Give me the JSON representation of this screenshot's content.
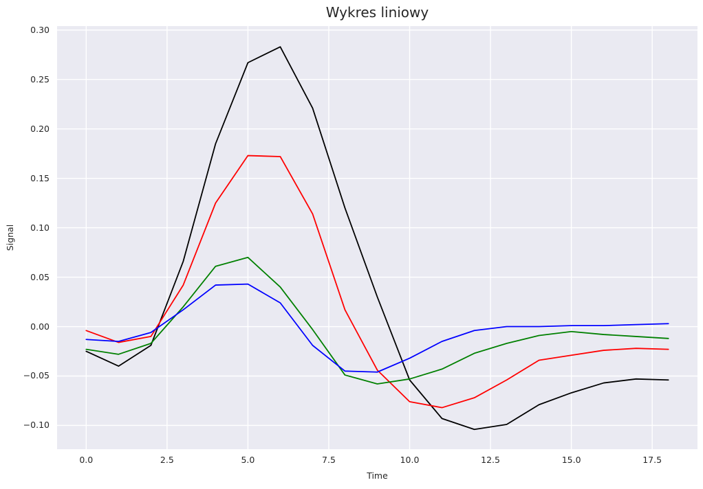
{
  "figure": {
    "background": "#ffffff"
  },
  "chart_data": {
    "type": "line",
    "title": "Wykres liniowy",
    "xlabel": "Time",
    "ylabel": "Signal",
    "grid": true,
    "legend": false,
    "plot_bg": "#eaeaf2",
    "grid_color": "#ffffff",
    "tick_color": "#262626",
    "xlim": [
      -0.9,
      18.9
    ],
    "ylim": [
      -0.124,
      0.304
    ],
    "xticks": [
      0,
      2.5,
      5,
      7.5,
      10,
      12.5,
      15,
      17.5
    ],
    "yticks": [
      -0.1,
      -0.05,
      0,
      0.05,
      0.1,
      0.15,
      0.2,
      0.25,
      0.3
    ],
    "x": [
      0,
      1,
      2,
      3,
      4,
      5,
      6,
      7,
      8,
      9,
      10,
      11,
      12,
      13,
      14,
      15,
      16,
      17,
      18
    ],
    "series": [
      {
        "name": "black",
        "color": "#000000",
        "values": [
          -0.025,
          -0.04,
          -0.019,
          0.066,
          0.185,
          0.267,
          0.283,
          0.221,
          0.12,
          0.03,
          -0.054,
          -0.093,
          -0.104,
          -0.099,
          -0.079,
          -0.067,
          -0.057,
          -0.053,
          -0.054
        ]
      },
      {
        "name": "red",
        "color": "#ff0000",
        "values": [
          -0.004,
          -0.016,
          -0.01,
          0.042,
          0.125,
          0.173,
          0.172,
          0.114,
          0.017,
          -0.044,
          -0.076,
          -0.082,
          -0.072,
          -0.054,
          -0.034,
          -0.029,
          -0.024,
          -0.022,
          -0.023
        ]
      },
      {
        "name": "green",
        "color": "#008000",
        "values": [
          -0.023,
          -0.028,
          -0.017,
          0.02,
          0.061,
          0.07,
          0.04,
          -0.003,
          -0.049,
          -0.058,
          -0.053,
          -0.043,
          -0.027,
          -0.017,
          -0.009,
          -0.005,
          -0.008,
          -0.01,
          -0.012
        ]
      },
      {
        "name": "blue",
        "color": "#0000ff",
        "values": [
          -0.013,
          -0.015,
          -0.006,
          0.017,
          0.042,
          0.043,
          0.024,
          -0.019,
          -0.045,
          -0.046,
          -0.032,
          -0.015,
          -0.004,
          0.0,
          0.0,
          0.001,
          0.001,
          0.002,
          0.003
        ]
      }
    ]
  }
}
